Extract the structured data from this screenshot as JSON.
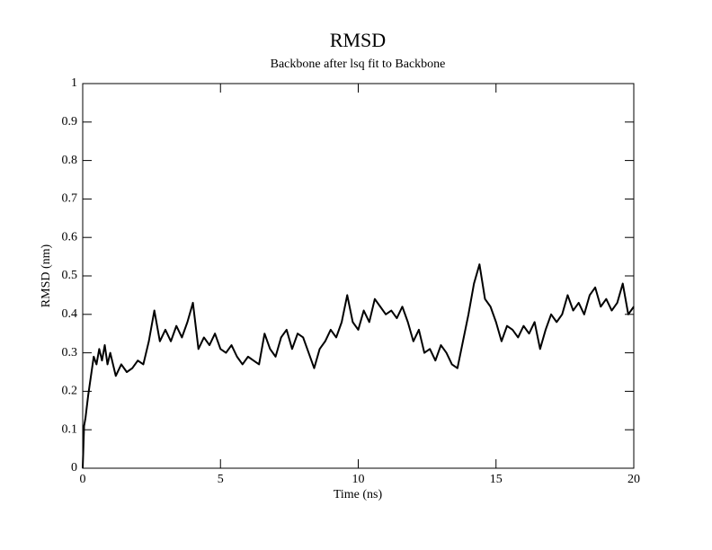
{
  "chart_data": {
    "type": "line",
    "title": "RMSD",
    "subtitle": "Backbone after lsq fit to Backbone",
    "x_label": "Time (ns)",
    "y_label": "RMSD (nm)",
    "color": "#000000",
    "x": [
      0,
      0.05,
      0.1,
      0.2,
      0.3,
      0.4,
      0.5,
      0.6,
      0.7,
      0.8,
      0.9,
      1.0,
      1.2,
      1.4,
      1.6,
      1.8,
      2.0,
      2.2,
      2.4,
      2.6,
      2.8,
      3.0,
      3.2,
      3.4,
      3.6,
      3.8,
      4.0,
      4.2,
      4.4,
      4.6,
      4.8,
      5.0,
      5.2,
      5.4,
      5.6,
      5.8,
      6.0,
      6.2,
      6.4,
      6.6,
      6.8,
      7.0,
      7.2,
      7.4,
      7.6,
      7.8,
      8.0,
      8.2,
      8.4,
      8.6,
      8.8,
      9.0,
      9.2,
      9.4,
      9.6,
      9.8,
      10.0,
      10.2,
      10.4,
      10.6,
      10.8,
      11.0,
      11.2,
      11.4,
      11.6,
      11.8,
      12.0,
      12.2,
      12.4,
      12.6,
      12.8,
      13.0,
      13.2,
      13.4,
      13.6,
      13.8,
      14.0,
      14.2,
      14.4,
      14.6,
      14.8,
      15.0,
      15.2,
      15.4,
      15.6,
      15.8,
      16.0,
      16.2,
      16.4,
      16.6,
      16.8,
      17.0,
      17.2,
      17.4,
      17.6,
      17.8,
      18.0,
      18.2,
      18.4,
      18.6,
      18.8,
      19.0,
      19.2,
      19.4,
      19.6,
      19.8,
      20.0
    ],
    "values": [
      0.0,
      0.11,
      0.13,
      0.19,
      0.24,
      0.29,
      0.27,
      0.31,
      0.28,
      0.32,
      0.27,
      0.3,
      0.24,
      0.27,
      0.25,
      0.26,
      0.28,
      0.27,
      0.33,
      0.41,
      0.33,
      0.36,
      0.33,
      0.37,
      0.34,
      0.38,
      0.43,
      0.31,
      0.34,
      0.32,
      0.35,
      0.31,
      0.3,
      0.32,
      0.29,
      0.27,
      0.29,
      0.28,
      0.27,
      0.35,
      0.31,
      0.29,
      0.34,
      0.36,
      0.31,
      0.35,
      0.34,
      0.3,
      0.26,
      0.31,
      0.33,
      0.36,
      0.34,
      0.38,
      0.45,
      0.38,
      0.36,
      0.41,
      0.38,
      0.44,
      0.42,
      0.4,
      0.41,
      0.39,
      0.42,
      0.38,
      0.33,
      0.36,
      0.3,
      0.31,
      0.28,
      0.32,
      0.3,
      0.27,
      0.26,
      0.33,
      0.4,
      0.48,
      0.53,
      0.44,
      0.42,
      0.38,
      0.33,
      0.37,
      0.36,
      0.34,
      0.37,
      0.35,
      0.38,
      0.31,
      0.36,
      0.4,
      0.38,
      0.4,
      0.45,
      0.41,
      0.43,
      0.4,
      0.45,
      0.47,
      0.42,
      0.44,
      0.41,
      0.43,
      0.48,
      0.4,
      0.42
    ],
    "xlim": [
      0,
      20
    ],
    "xticks": [
      0,
      5,
      10,
      15,
      20
    ],
    "ylim": [
      0,
      1
    ],
    "yticks": [
      0,
      0.1,
      0.2,
      0.3,
      0.4,
      0.5,
      0.6,
      0.7,
      0.8,
      0.9,
      1
    ]
  }
}
